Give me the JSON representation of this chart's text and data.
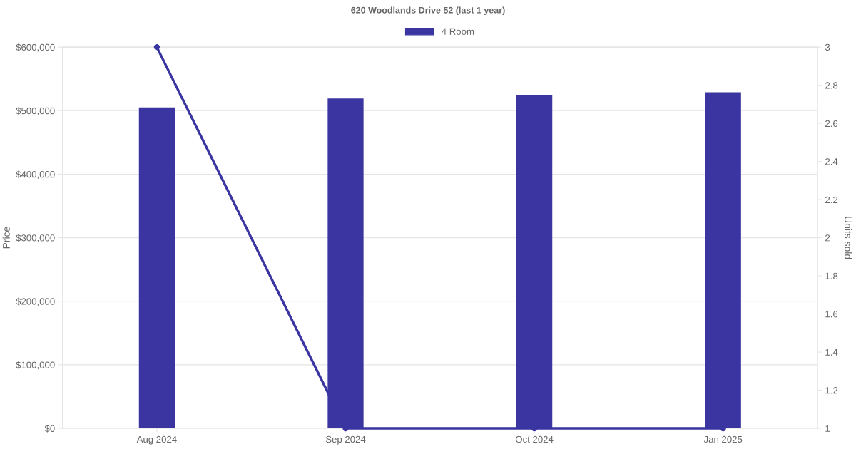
{
  "chart_data": {
    "type": "bar",
    "title": "620 Woodlands Drive 52 (last 1 year)",
    "ylabel": "Price",
    "y2label": "Units sold",
    "categories": [
      "Aug 2024",
      "Sep 2024",
      "Oct 2024",
      "Jan 2025"
    ],
    "series": [
      {
        "name": "4 Room",
        "color": "#3a35a0",
        "values": [
          505000,
          519000,
          525000,
          529000
        ]
      },
      {
        "type": "line",
        "axis": "y2",
        "color": "#3a35a0",
        "values": [
          3,
          1,
          1,
          1
        ]
      }
    ],
    "ylim": [
      0,
      600000
    ],
    "yticks": [
      {
        "value": 0,
        "label": "$0"
      },
      {
        "value": 100000,
        "label": "$100,000"
      },
      {
        "value": 200000,
        "label": "$200,000"
      },
      {
        "value": 300000,
        "label": "$300,000"
      },
      {
        "value": 400000,
        "label": "$400,000"
      },
      {
        "value": 500000,
        "label": "$500,000"
      },
      {
        "value": 600000,
        "label": "$600,000"
      }
    ],
    "y2lim": [
      1,
      3
    ],
    "y2ticks": [
      1,
      1.2,
      1.4,
      1.6,
      1.8,
      2,
      2.2,
      2.4,
      2.6,
      2.8,
      3
    ],
    "grid": "y",
    "legend": "top",
    "marker": "circle",
    "line_style": "solid"
  }
}
